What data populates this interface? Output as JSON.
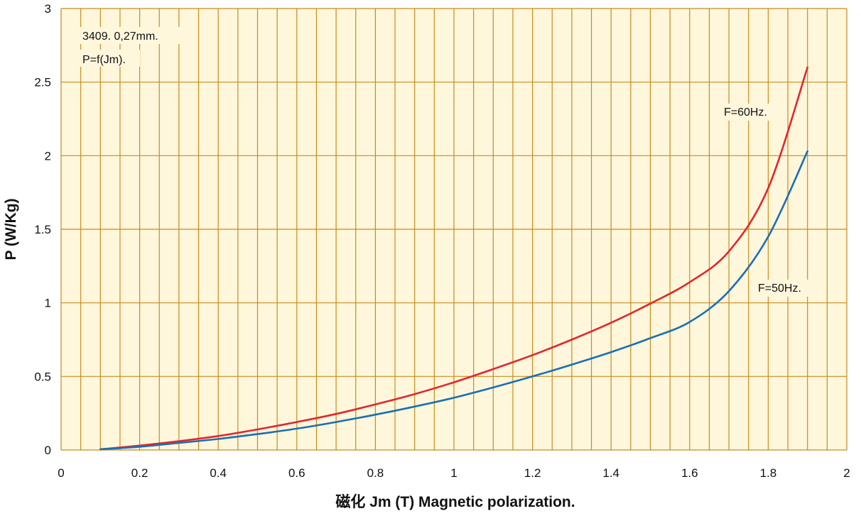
{
  "chart_data": {
    "type": "line",
    "xlabel": "磁化  Jm (T) Magnetic polarization.",
    "ylabel": "P (W/Kg)",
    "xlim": [
      0,
      2
    ],
    "ylim": [
      0,
      3
    ],
    "x_ticks": [
      "0",
      "0.2",
      "0.4",
      "0.6",
      "0.8",
      "1",
      "1.2",
      "1.4",
      "1.6",
      "1.8",
      "2"
    ],
    "y_ticks": [
      "0",
      "0.5",
      "1",
      "1.5",
      "2",
      "2.5",
      "3"
    ],
    "grid": true,
    "annotations": [
      "3409.  0,27mm.",
      "P=f(Jm)."
    ],
    "series": [
      {
        "name": "F=60Hz.",
        "color": "#e3262b",
        "x": [
          0.1,
          0.2,
          0.3,
          0.4,
          0.5,
          0.6,
          0.7,
          0.8,
          0.9,
          1.0,
          1.1,
          1.2,
          1.3,
          1.4,
          1.5,
          1.6,
          1.7,
          1.8,
          1.9
        ],
        "y": [
          0.005,
          0.03,
          0.06,
          0.095,
          0.14,
          0.19,
          0.245,
          0.31,
          0.38,
          0.46,
          0.55,
          0.645,
          0.75,
          0.865,
          0.995,
          1.14,
          1.35,
          1.78,
          2.6
        ]
      },
      {
        "name": "F=50Hz.",
        "color": "#1a6fb5",
        "x": [
          0.1,
          0.2,
          0.3,
          0.4,
          0.5,
          0.6,
          0.7,
          0.8,
          0.9,
          1.0,
          1.1,
          1.2,
          1.3,
          1.4,
          1.5,
          1.6,
          1.7,
          1.8,
          1.9
        ],
        "y": [
          0.005,
          0.022,
          0.048,
          0.075,
          0.108,
          0.145,
          0.19,
          0.24,
          0.295,
          0.355,
          0.425,
          0.5,
          0.58,
          0.665,
          0.76,
          0.87,
          1.08,
          1.45,
          2.03
        ]
      }
    ]
  }
}
